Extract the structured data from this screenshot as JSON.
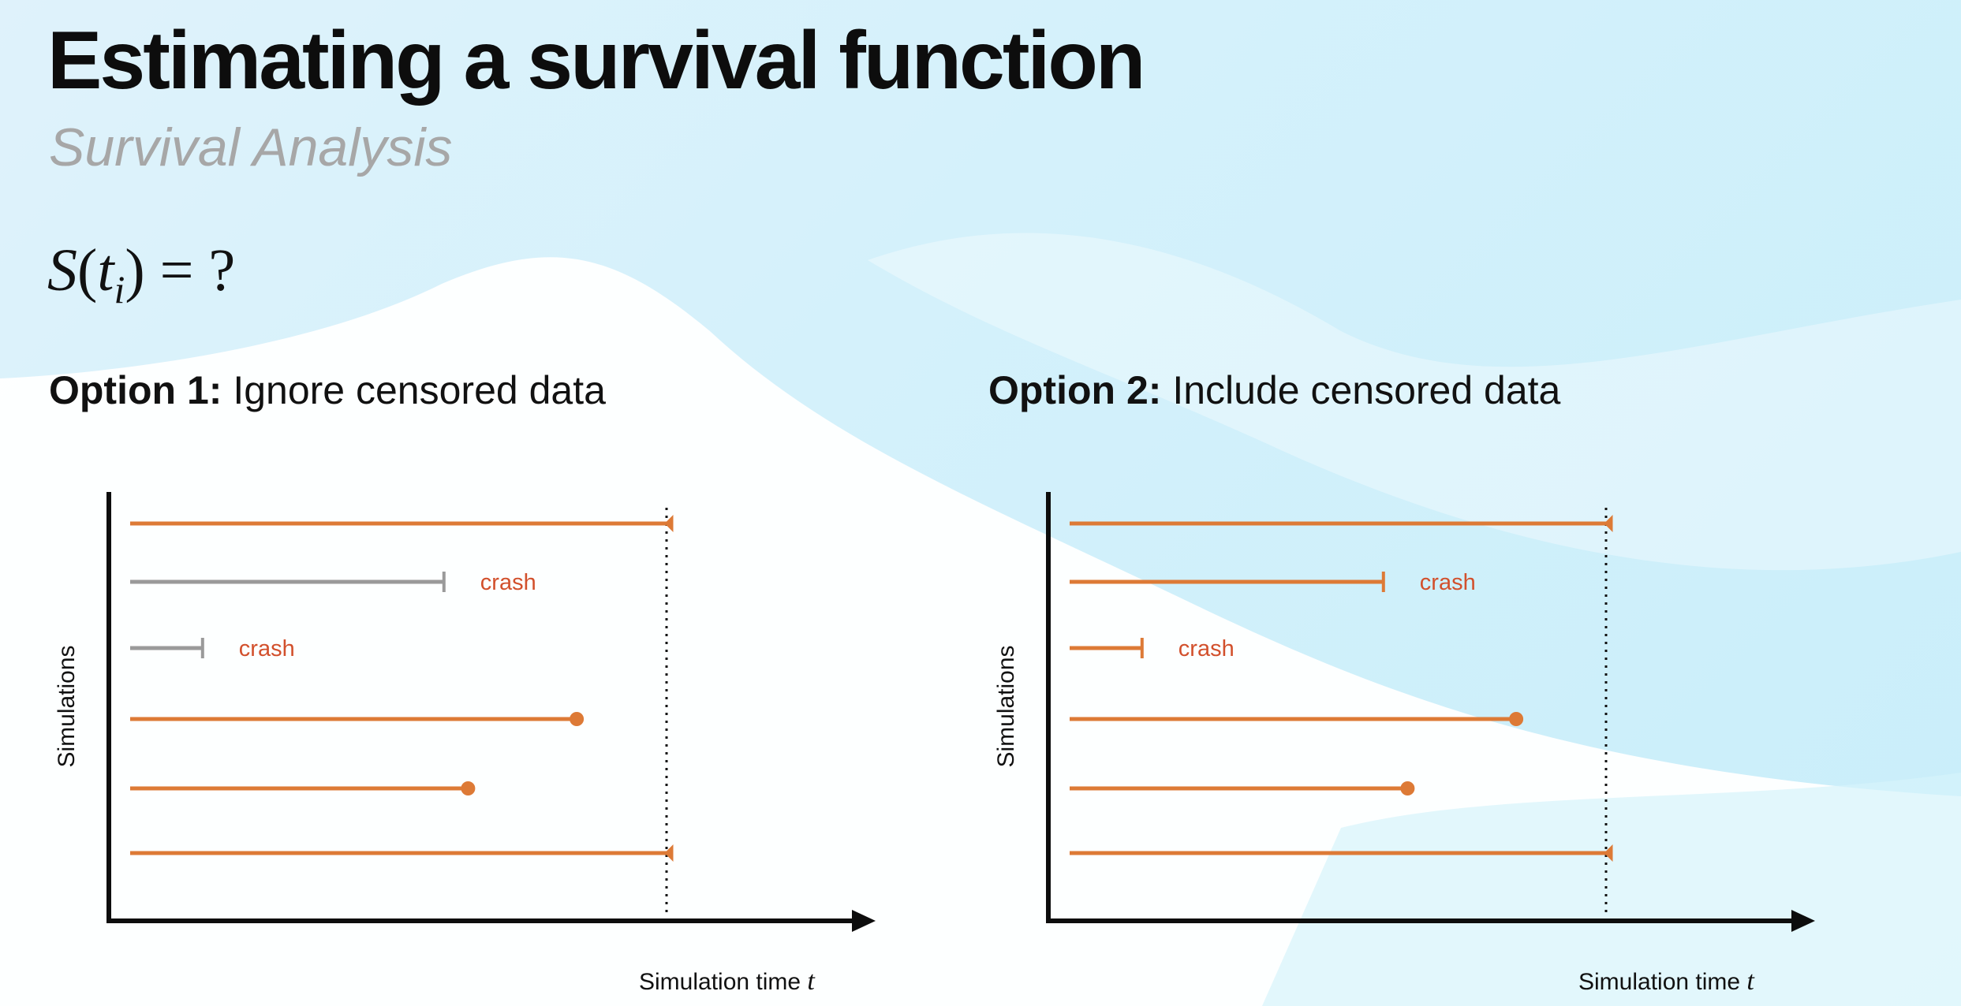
{
  "slide": {
    "title": "Estimating a survival function",
    "subtitle": "Survival Analysis",
    "formula": {
      "lhs_symbol": "S",
      "var": "t",
      "index": "i",
      "rhs": "= ?"
    }
  },
  "colors": {
    "orange": "#dd7a36",
    "gray": "#9a9a9a",
    "crash_label": "#d2502c",
    "axis": "#0d0d0d"
  },
  "options": [
    {
      "heading_bold": "Option 1:",
      "heading_text": "Ignore censored data",
      "y_label": "Simulations",
      "x_label": "Simulation time",
      "x_label_var": "t",
      "crash_label": "crash",
      "rows": [
        {
          "end": 0.9,
          "marker": "censor",
          "color": "orange"
        },
        {
          "end": 0.52,
          "marker": "tick",
          "color": "gray",
          "crash": true
        },
        {
          "end": 0.12,
          "marker": "tick",
          "color": "gray",
          "crash": true
        },
        {
          "end": 0.74,
          "marker": "dot",
          "color": "orange"
        },
        {
          "end": 0.56,
          "marker": "dot",
          "color": "orange"
        },
        {
          "end": 0.9,
          "marker": "censor",
          "color": "orange"
        }
      ]
    },
    {
      "heading_bold": "Option 2:",
      "heading_text": "Include censored data",
      "y_label": "Simulations",
      "x_label": "Simulation time",
      "x_label_var": "t",
      "crash_label": "crash",
      "rows": [
        {
          "end": 0.9,
          "marker": "censor",
          "color": "orange"
        },
        {
          "end": 0.52,
          "marker": "tick",
          "color": "orange",
          "crash": true
        },
        {
          "end": 0.12,
          "marker": "tick",
          "color": "orange",
          "crash": true
        },
        {
          "end": 0.74,
          "marker": "dot",
          "color": "orange"
        },
        {
          "end": 0.56,
          "marker": "dot",
          "color": "orange"
        },
        {
          "end": 0.9,
          "marker": "censor",
          "color": "orange"
        }
      ]
    }
  ]
}
